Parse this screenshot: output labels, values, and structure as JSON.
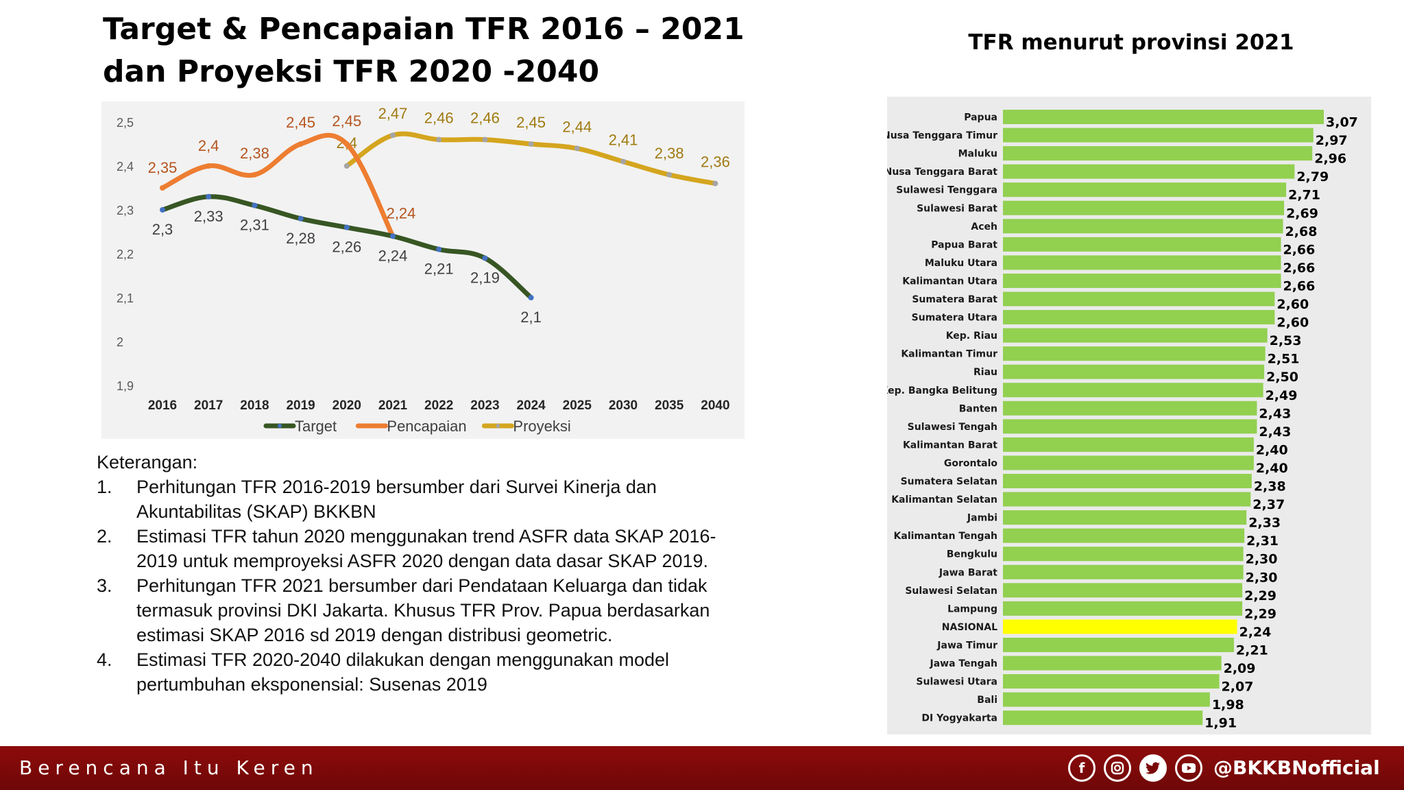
{
  "header": {
    "title_line1": "Target & Pencapaian TFR 2016 – 2021",
    "title_line2": "dan Proyeksi TFR 2020 -2040",
    "right_title": "TFR menurut provinsi 2021"
  },
  "chart_data": [
    {
      "type": "line",
      "title": "",
      "x": [
        "2016",
        "2017",
        "2018",
        "2019",
        "2020",
        "2021",
        "2022",
        "2023",
        "2024",
        "2025",
        "2030",
        "2035",
        "2040"
      ],
      "yticks": [
        "2,5",
        "2,4",
        "2,3",
        "2,2",
        "2,1",
        "2",
        "1,9"
      ],
      "ylim": [
        1.9,
        2.5
      ],
      "grid": false,
      "legend": "bottom",
      "series": [
        {
          "name": "Target",
          "color": "#375623",
          "marker_color": "#4472c4",
          "values": [
            2.3,
            2.33,
            2.31,
            2.28,
            2.26,
            2.24,
            2.21,
            2.19,
            2.1,
            null,
            null,
            null,
            null
          ],
          "labels": [
            "2,3",
            "2,33",
            "2,31",
            "2,28",
            "2,26",
            "2,24",
            "2,21",
            "2,19",
            "2,1",
            null,
            null,
            null,
            null
          ]
        },
        {
          "name": "Pencapaian",
          "color": "#ed7d31",
          "marker_color": "#ed7d31",
          "values": [
            2.35,
            2.4,
            2.38,
            2.45,
            2.45,
            2.24,
            null,
            null,
            null,
            null,
            null,
            null,
            null
          ],
          "labels": [
            "2,35",
            "2,4",
            "2,38",
            "2,45",
            "2,45",
            "2,24",
            null,
            null,
            null,
            null,
            null,
            null,
            null
          ]
        },
        {
          "name": "Proyeksi",
          "color": "#d4a51e",
          "marker_color": "#a5a5a5",
          "values": [
            null,
            null,
            null,
            null,
            2.4,
            2.47,
            2.46,
            2.46,
            2.45,
            2.44,
            2.41,
            2.38,
            2.36
          ],
          "labels": [
            null,
            null,
            null,
            null,
            "2,4",
            "2,47",
            "2,46",
            "2,46",
            "2,45",
            "2,44",
            "2,41",
            "2,38",
            "2,36"
          ]
        }
      ]
    },
    {
      "type": "bar",
      "orientation": "horizontal",
      "title": "",
      "bar_color": "#92d050",
      "highlight_color": "#ffff00",
      "highlight": "NASIONAL",
      "xlim": [
        0,
        3.07
      ],
      "categories": [
        "Papua",
        "Nusa Tenggara Timur",
        "Maluku",
        "Nusa Tenggara Barat",
        "Sulawesi Tenggara",
        "Sulawesi Barat",
        "Aceh",
        "Papua Barat",
        "Maluku Utara",
        "Kalimantan Utara",
        "Sumatera Barat",
        "Sumatera Utara",
        "Kep. Riau",
        "Kalimantan Timur",
        "Riau",
        "Kep. Bangka Belitung",
        "Banten",
        "Sulawesi Tengah",
        "Kalimantan Barat",
        "Gorontalo",
        "Sumatera Selatan",
        "Kalimantan Selatan",
        "Jambi",
        "Kalimantan Tengah",
        "Bengkulu",
        "Jawa Barat",
        "Sulawesi Selatan",
        "Lampung",
        "NASIONAL",
        "Jawa Timur",
        "Jawa Tengah",
        "Sulawesi Utara",
        "Bali",
        "DI Yogyakarta"
      ],
      "values": [
        3.07,
        2.97,
        2.96,
        2.79,
        2.71,
        2.69,
        2.68,
        2.66,
        2.66,
        2.66,
        2.6,
        2.6,
        2.53,
        2.51,
        2.5,
        2.49,
        2.43,
        2.43,
        2.4,
        2.4,
        2.38,
        2.37,
        2.33,
        2.31,
        2.3,
        2.3,
        2.29,
        2.29,
        2.24,
        2.21,
        2.09,
        2.07,
        1.98,
        1.91
      ],
      "labels": [
        "3,07",
        "2,97",
        "2,96",
        "2,79",
        "2,71",
        "2,69",
        "2,68",
        "2,66",
        "2,66",
        "2,66",
        "2,60",
        "2,60",
        "2,53",
        "2,51",
        "2,50",
        "2,49",
        "2,43",
        "2,43",
        "2,40",
        "2,40",
        "2,38",
        "2,37",
        "2,33",
        "2,31",
        "2,30",
        "2,30",
        "2,29",
        "2,29",
        "2,24",
        "2,21",
        "2,09",
        "2,07",
        "1,98",
        "1,91"
      ]
    }
  ],
  "notes": {
    "heading": "Keterangan:",
    "items": [
      {
        "num": "1.",
        "text": "Perhitungan TFR 2016-2019 bersumber dari Survei Kinerja dan Akuntabilitas (SKAP) BKKBN"
      },
      {
        "num": "2.",
        "text": "Estimasi TFR tahun 2020 menggunakan trend ASFR data SKAP 2016-2019 untuk memproyeksi ASFR 2020 dengan data dasar SKAP 2019."
      },
      {
        "num": "3.",
        "text": "Perhitungan TFR 2021 bersumber dari Pendataan Keluarga dan tidak termasuk provinsi DKI Jakarta. Khusus TFR Prov. Papua berdasarkan estimasi SKAP 2016 sd 2019 dengan distribusi geometric."
      },
      {
        "num": "4.",
        "text": "Estimasi TFR 2020-2040 dilakukan dengan menggunakan model pertumbuhan eksponensial: Susenas 2019"
      }
    ]
  },
  "footer": {
    "slogan": "Berencana Itu Keren",
    "handle": "@BKKBNofficial",
    "icons": [
      "facebook-icon",
      "instagram-icon",
      "twitter-icon",
      "youtube-icon"
    ],
    "background": "#7a0808"
  }
}
